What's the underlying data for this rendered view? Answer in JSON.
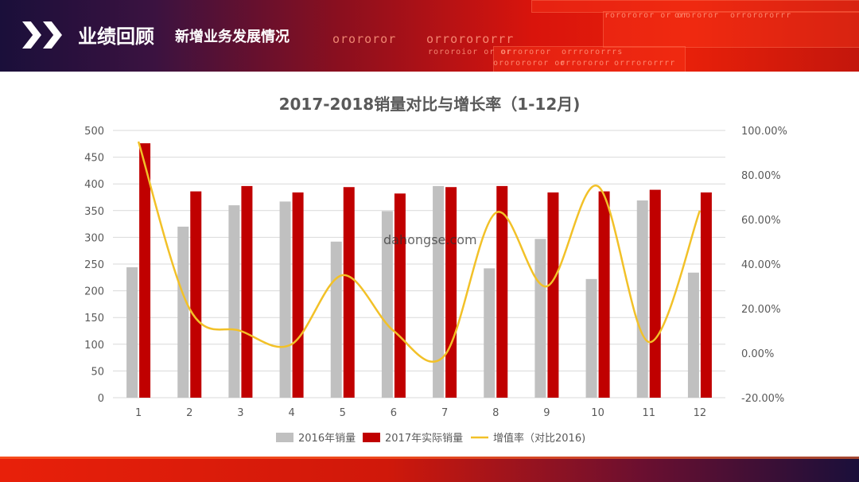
{
  "header": {
    "main_title": "业绩回顾",
    "sub_title": "新增业务发展情况",
    "deco_text": [
      "rorororor or or",
      "orororor",
      "orrorororrr",
      "orororor",
      "orrorororrr",
      "rororoior or or",
      "orrororor",
      "orrrororrrs",
      "ororororor or",
      "orrororor",
      "orrrororrrr"
    ]
  },
  "watermark": "dahongse.com",
  "colors": {
    "series_2016": "#c0c0c0",
    "series_2017": "#c00000",
    "growth_line": "#f2c128",
    "grid": "#d9d9d9",
    "axis_text": "#595959"
  },
  "chart_data": {
    "type": "bar",
    "title": "2017-2018销量对比与增长率（1-12月)",
    "categories": [
      "1",
      "2",
      "3",
      "4",
      "5",
      "6",
      "7",
      "8",
      "9",
      "10",
      "11",
      "12"
    ],
    "series": [
      {
        "name": "2016年销量",
        "type": "bar",
        "axis": "left",
        "values": [
          244,
          320,
          360,
          367,
          292,
          349,
          396,
          242,
          297,
          222,
          369,
          234
        ]
      },
      {
        "name": "2017年实际销量",
        "type": "bar",
        "axis": "left",
        "values": [
          476,
          386,
          396,
          384,
          394,
          382,
          394,
          396,
          384,
          386,
          389,
          384
        ]
      },
      {
        "name": "增值率（对比2016)",
        "type": "line",
        "axis": "right",
        "values": [
          0.95,
          0.2,
          0.1,
          0.04,
          0.35,
          0.1,
          -0.01,
          0.63,
          0.3,
          0.75,
          0.05,
          0.64
        ]
      }
    ],
    "ylim_left": [
      0,
      500
    ],
    "yticks_left": [
      "0",
      "50",
      "100",
      "150",
      "200",
      "250",
      "300",
      "350",
      "400",
      "450",
      "500"
    ],
    "ylim_right": [
      -0.2,
      1.0
    ],
    "yticks_right": [
      "-20.00%",
      "0.00%",
      "20.00%",
      "40.00%",
      "60.00%",
      "80.00%",
      "100.00%"
    ],
    "grid": true,
    "legend_position": "bottom"
  }
}
